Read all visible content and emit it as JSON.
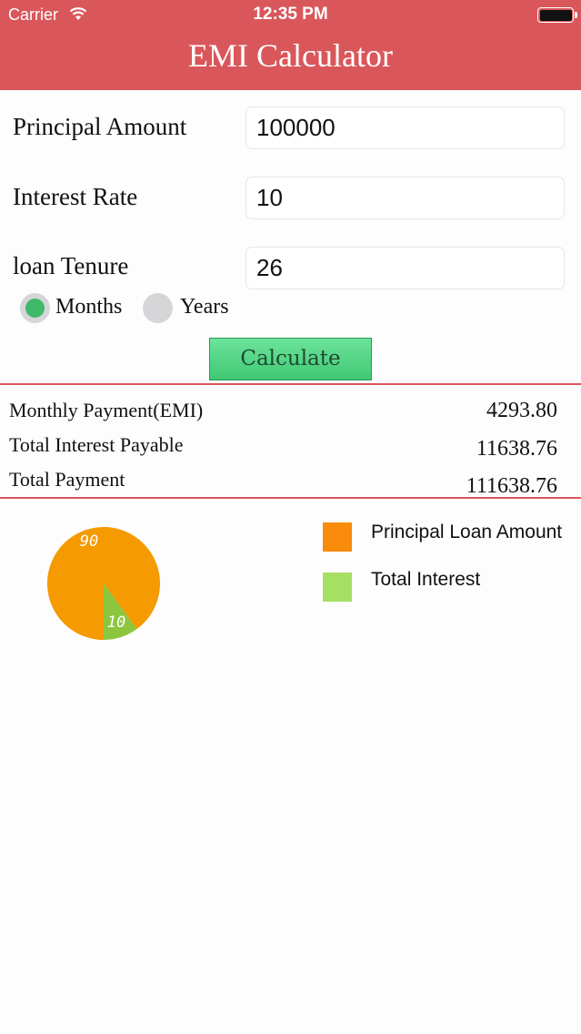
{
  "status_bar": {
    "carrier": "Carrier",
    "time": "12:35 PM"
  },
  "nav": {
    "title": "EMI Calculator"
  },
  "form": {
    "principal": {
      "label": "Principal Amount",
      "value": "100000"
    },
    "interest": {
      "label": "Interest Rate",
      "value": "10"
    },
    "tenure": {
      "label": "loan Tenure",
      "value": "26"
    },
    "tenure_unit": {
      "months_label": "Months",
      "years_label": "Years",
      "selected": "Months"
    },
    "calculate_label": "Calculate"
  },
  "results": {
    "emi": {
      "label": "Monthly Payment(EMI)",
      "value": "4293.80"
    },
    "interest": {
      "label": "Total Interest Payable",
      "value": "11638.76"
    },
    "total": {
      "label": "Total Payment",
      "value": "111638.76"
    }
  },
  "colors": {
    "accent": "#d9575b",
    "principal": "#f59a00",
    "interest": "#8cc63f",
    "radio_selected": "#3fb96a"
  },
  "chart_data": {
    "type": "pie",
    "slices": [
      {
        "name": "Principal Loan Amount",
        "value": 90,
        "label": "90",
        "color": "#f59a00"
      },
      {
        "name": "Total Interest",
        "value": 10,
        "label": "10",
        "color": "#8cc63f"
      }
    ],
    "legend": [
      {
        "label": "Principal Loan Amount",
        "color": "#f98b0a"
      },
      {
        "label": "Total Interest",
        "color": "#a6e063"
      }
    ],
    "legend_position": "right"
  }
}
